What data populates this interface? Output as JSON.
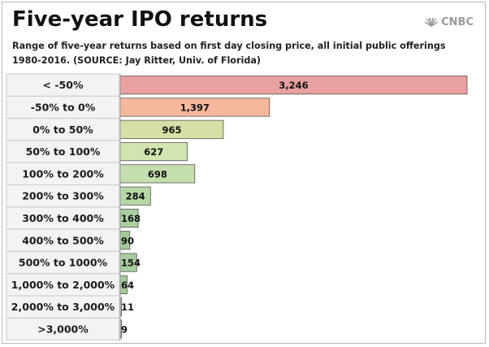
{
  "header": {
    "title": "Five-year IPO returns",
    "subtitle": "Range of five-year returns based on first day closing price, all  initial public offerings 1980-2016. (SOURCE: Jay Ritter, Univ. of Florida)",
    "logo_text": "CNBC"
  },
  "colors": {
    "loss_strong": "#e8a0a0",
    "loss_mild": "#f6b89c",
    "gain_low": "#d7e0a4",
    "gain_mid": "#c5deae",
    "gain_high": "#a9cf9e",
    "row_label_bg": "#f3f3f3",
    "bar_outline": "#555555"
  },
  "chart_data": {
    "type": "bar",
    "orientation": "horizontal",
    "title": "Five-year IPO returns",
    "subtitle": "Range of five-year returns based on first day closing price, all  initial public offerings 1980-2016. (SOURCE: Jay Ritter, Univ. of Florida)",
    "xlabel": "",
    "ylabel": "",
    "grid": false,
    "legend": "none",
    "categories": [
      "< -50%",
      "-50% to 0%",
      "0% to 50%",
      "50% to 100%",
      "100% to 200%",
      "200% to 300%",
      "300% to 400%",
      "400% to 500%",
      "500% to 1000%",
      "1,000% to 2,000%",
      "2,000% to 3,000%",
      ">3,000%"
    ],
    "values": [
      3246,
      1397,
      965,
      627,
      698,
      284,
      168,
      90,
      154,
      64,
      11,
      9
    ],
    "value_labels": [
      "3,246",
      "1,397",
      "965",
      "627",
      "698",
      "284",
      "168",
      "90",
      "154",
      "64",
      "11",
      "9"
    ],
    "bar_colors": [
      "#e8a0a0",
      "#f6b89c",
      "#d7e0a4",
      "#d2e4b0",
      "#c5deae",
      "#b6d6a6",
      "#aacf9e",
      "#a3cb99",
      "#a8cd9c",
      "#a3cb99",
      "#a3cb99",
      "#a3cb99"
    ],
    "xlim": [
      0,
      3246
    ]
  }
}
